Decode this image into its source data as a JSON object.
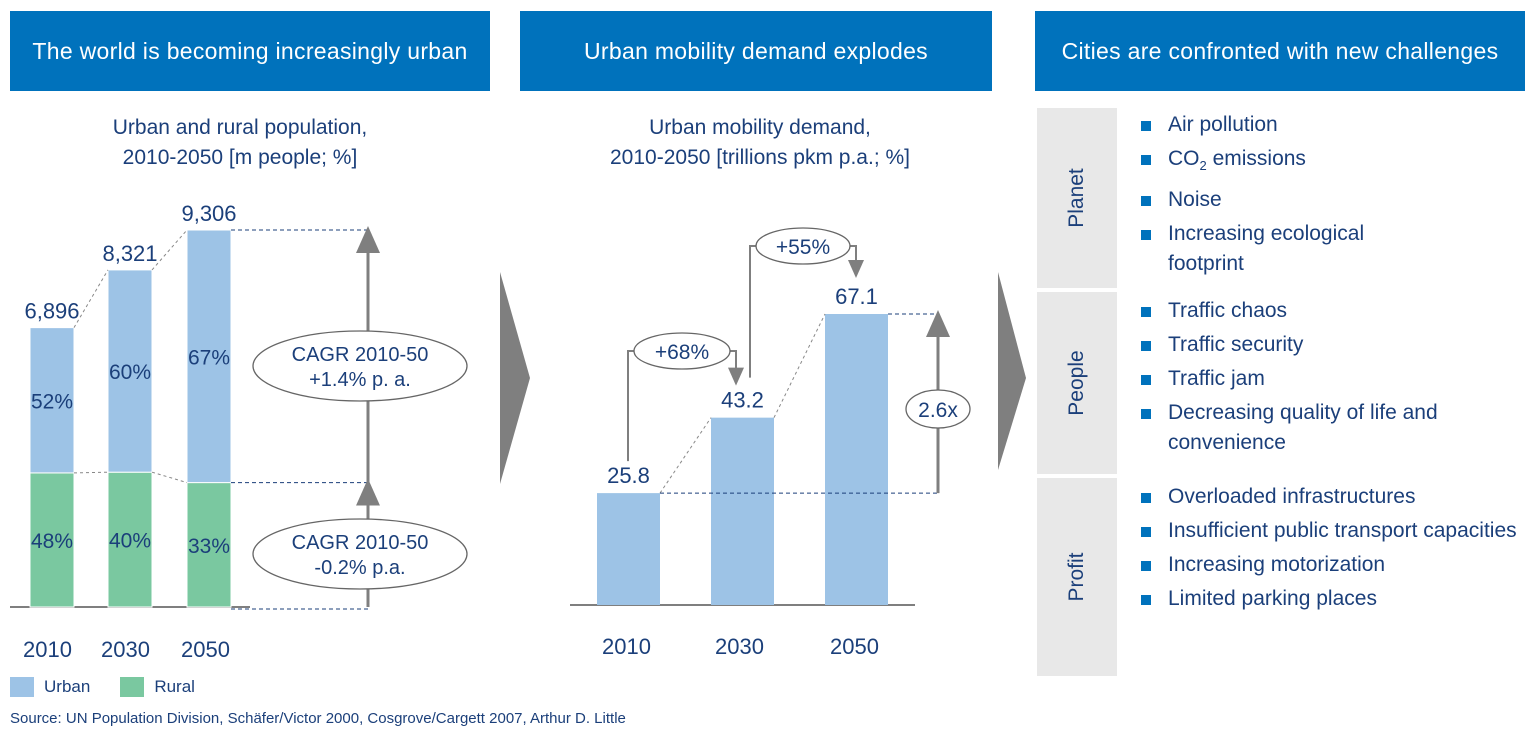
{
  "headers": {
    "left": "The world is becoming increasingly urban",
    "middle": "Urban mobility demand explodes",
    "right": "Cities are confronted with new challenges"
  },
  "chart_data": [
    {
      "type": "bar",
      "title": "Urban and rural population, 2010-2050 [m people; %]",
      "title_lines": [
        "Urban and rural population,",
        "2010-2050 [m people; %]"
      ],
      "categories": [
        "2010",
        "2030",
        "2050"
      ],
      "totals": [
        6896,
        8321,
        9306
      ],
      "total_labels": [
        "6,896",
        "8,321",
        "9,306"
      ],
      "series": [
        {
          "name": "Urban",
          "values": [
            3586,
            4993,
            6235
          ],
          "labels": [
            "52%",
            "60%",
            "67%"
          ],
          "color": "#9dc3e6"
        },
        {
          "name": "Rural",
          "values": [
            3310,
            3328,
            3071
          ],
          "labels": [
            "48%",
            "40%",
            "33%"
          ],
          "color": "#7ac8a0"
        }
      ],
      "annotations": [
        {
          "line1": "CAGR 2010-50",
          "line2": "+1.4% p. a."
        },
        {
          "line1": "CAGR 2010-50",
          "line2": "-0.2% p.a."
        }
      ],
      "legend": {
        "position": "bottom-left",
        "items": [
          "Urban",
          "Rural"
        ]
      },
      "ylim": [
        0,
        9306
      ],
      "grid": false
    },
    {
      "type": "bar",
      "title": "Urban mobility demand, 2010-2050 [trillions pkm p.a.; %]",
      "title_lines": [
        "Urban mobility demand,",
        "2010-2050 [trillions pkm p.a.; %]"
      ],
      "categories": [
        "2010",
        "2030",
        "2050"
      ],
      "values": [
        25.8,
        43.2,
        67.1
      ],
      "value_labels": [
        "25.8",
        "43.2",
        "67.1"
      ],
      "color": "#9dc3e6",
      "growth_labels": [
        "+68%",
        "+55%"
      ],
      "multiplier_label": "2.6x",
      "ylim": [
        0,
        67.1
      ],
      "grid": false
    }
  ],
  "challenges": [
    {
      "label": "Planet",
      "items": [
        "Air pollution",
        "CO2 emissions",
        "Noise",
        "Increasing ecological footprint"
      ]
    },
    {
      "label": "People",
      "items": [
        "Traffic chaos",
        "Traffic security",
        "Traffic jam",
        "Decreasing quality of life and convenience"
      ]
    },
    {
      "label": "Profit",
      "items": [
        "Overloaded infrastructures",
        "Insufficient public transport capacities",
        "Increasing motorization",
        "Limited parking places"
      ]
    }
  ],
  "co2": {
    "base": "CO",
    "sub": "2",
    "rest": " emissions"
  },
  "source": "Source: UN Population Division, Schäfer/Victor 2000, Cosgrove/Cargett 2007, Arthur D. Little",
  "colors": {
    "header": "#0072bc",
    "urban": "#9dc3e6",
    "rural": "#7ac8a0",
    "text": "#1b3f7a",
    "bullet": "#0072bc",
    "panel": "#e8e8e8",
    "arrow": "#7f7f7f"
  }
}
